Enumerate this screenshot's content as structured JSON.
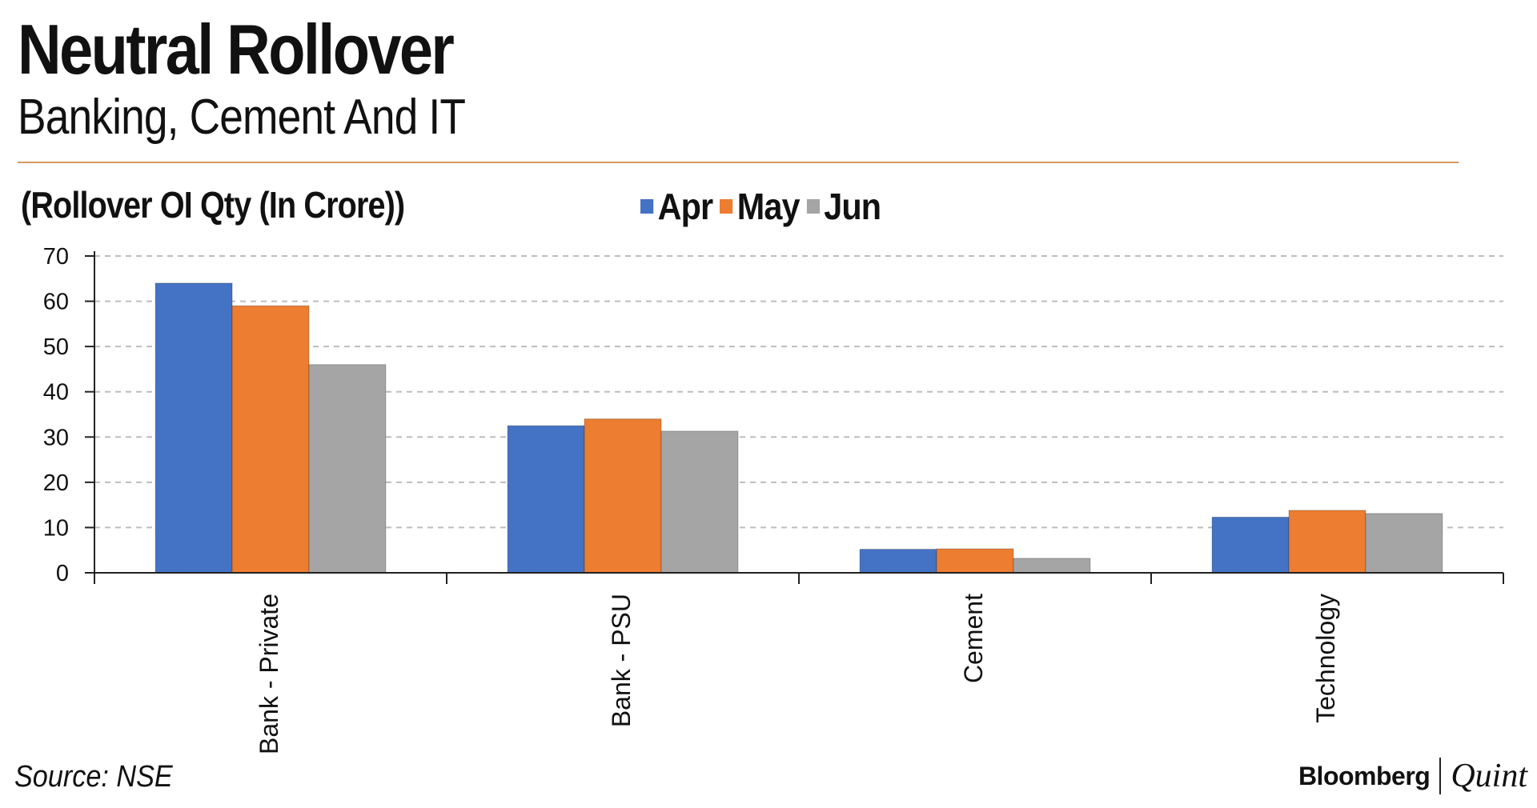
{
  "header": {
    "title": "Neutral Rollover",
    "subtitle": "Banking, Cement And IT",
    "unit_label": "(Rollover OI Qty (In Crore))"
  },
  "footer": {
    "source": "Source: NSE",
    "brand_primary": "Bloomberg",
    "brand_secondary": "Quint"
  },
  "colors": {
    "rule": "#d29a5a",
    "axis": "#222222",
    "grid": "#bdbdbd"
  },
  "chart_data": {
    "type": "bar",
    "categories": [
      "Bank - Private",
      "Bank - PSU",
      "Cement",
      "Technology"
    ],
    "series": [
      {
        "name": "Apr",
        "color": "#4472c4",
        "values": [
          64,
          32.5,
          5.2,
          12.3
        ]
      },
      {
        "name": "May",
        "color": "#ed7d31",
        "values": [
          59,
          34,
          5.3,
          13.8
        ]
      },
      {
        "name": "Jun",
        "color": "#a5a5a5",
        "values": [
          46,
          31.3,
          3.2,
          13.1
        ]
      }
    ],
    "yticks": [
      "0",
      "10",
      "20",
      "30",
      "40",
      "50",
      "60",
      "70"
    ],
    "ylim": [
      0,
      70
    ],
    "grid": true,
    "legend_position": "top-center"
  }
}
